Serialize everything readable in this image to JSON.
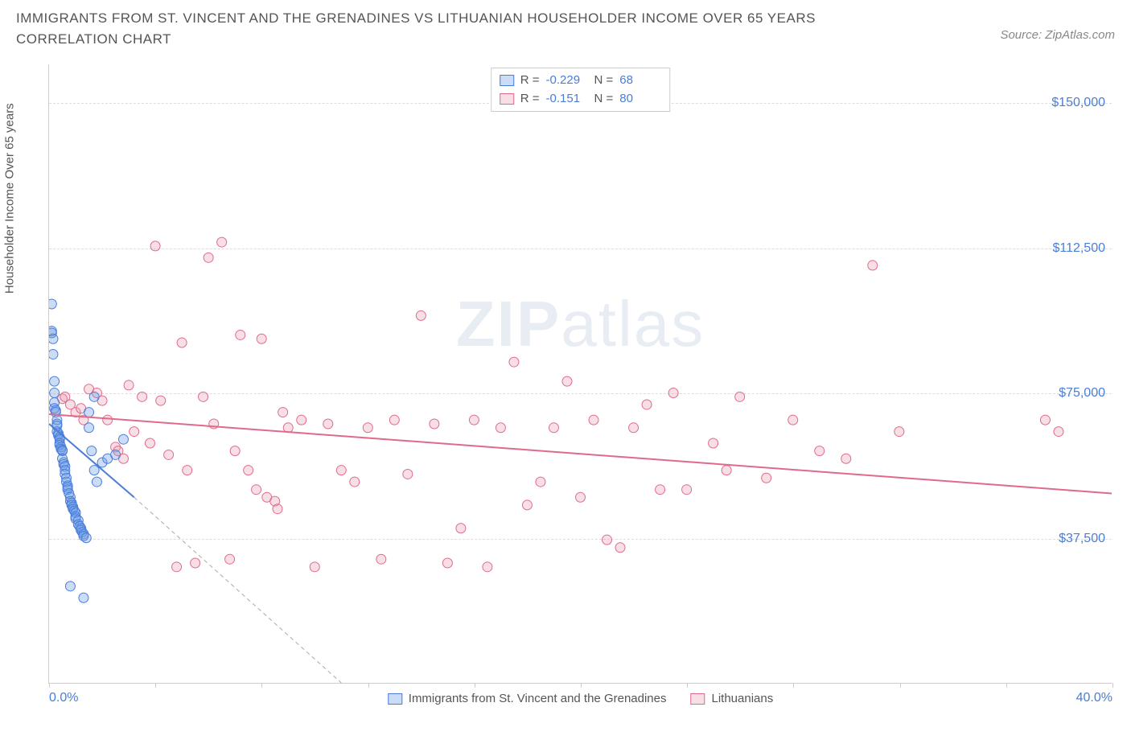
{
  "header": {
    "title": "IMMIGRANTS FROM ST. VINCENT AND THE GRENADINES VS LITHUANIAN HOUSEHOLDER INCOME OVER 65 YEARS CORRELATION CHART",
    "source": "Source: ZipAtlas.com"
  },
  "watermark": {
    "zip": "ZIP",
    "atlas": "atlas"
  },
  "chart": {
    "type": "scatter",
    "background_color": "#ffffff",
    "grid_color": "#dddddd",
    "axis_color": "#cccccc",
    "y_label": "Householder Income Over 65 years",
    "label_fontsize": 15,
    "tick_fontsize": 16,
    "tick_color": "#4a7dd8",
    "xlim": [
      0,
      40
    ],
    "ylim": [
      0,
      160000
    ],
    "x_ticks": [
      0,
      40
    ],
    "x_tick_labels": [
      "0.0%",
      "40.0%"
    ],
    "x_minor_ticks": [
      0,
      4,
      8,
      12,
      16,
      20,
      24,
      28,
      32,
      36,
      40
    ],
    "y_ticks": [
      37500,
      75000,
      112500,
      150000
    ],
    "y_tick_labels": [
      "$37,500",
      "$75,000",
      "$112,500",
      "$150,000"
    ],
    "marker_radius": 6,
    "marker_opacity": 0.55,
    "line_width": 2,
    "series": {
      "a": {
        "name": "Immigrants from St. Vincent and the Grenadines",
        "color": "#6b9be8",
        "fill": "rgba(107,155,232,0.35)",
        "border": "#4a7dd8",
        "R": "-0.229",
        "N": "68",
        "regression": {
          "x1": 0,
          "y1": 67000,
          "x2": 3.2,
          "y2": 48000
        },
        "extrapolation": {
          "x1": 3.2,
          "y1": 48000,
          "x2": 11,
          "y2": 0
        },
        "points": [
          [
            0.1,
            98000
          ],
          [
            0.1,
            91000
          ],
          [
            0.1,
            90500
          ],
          [
            0.15,
            85000
          ],
          [
            0.15,
            89000
          ],
          [
            0.2,
            78000
          ],
          [
            0.2,
            75000
          ],
          [
            0.2,
            72500
          ],
          [
            0.2,
            71000
          ],
          [
            0.25,
            70500
          ],
          [
            0.25,
            70000
          ],
          [
            0.3,
            68000
          ],
          [
            0.3,
            67000
          ],
          [
            0.3,
            66500
          ],
          [
            0.3,
            65000
          ],
          [
            0.35,
            64500
          ],
          [
            0.35,
            64000
          ],
          [
            0.4,
            63500
          ],
          [
            0.4,
            63000
          ],
          [
            0.4,
            62000
          ],
          [
            0.4,
            61500
          ],
          [
            0.45,
            61000
          ],
          [
            0.45,
            60500
          ],
          [
            0.5,
            60200
          ],
          [
            0.5,
            60000
          ],
          [
            0.5,
            58000
          ],
          [
            0.55,
            57000
          ],
          [
            0.55,
            56500
          ],
          [
            0.6,
            56000
          ],
          [
            0.6,
            55000
          ],
          [
            0.6,
            54000
          ],
          [
            0.65,
            53000
          ],
          [
            0.65,
            52000
          ],
          [
            0.7,
            51000
          ],
          [
            0.7,
            50500
          ],
          [
            0.7,
            50000
          ],
          [
            0.75,
            49000
          ],
          [
            0.8,
            48000
          ],
          [
            0.8,
            47000
          ],
          [
            0.85,
            46500
          ],
          [
            0.85,
            46000
          ],
          [
            0.9,
            45500
          ],
          [
            0.9,
            45000
          ],
          [
            0.95,
            44500
          ],
          [
            1.0,
            44000
          ],
          [
            1.0,
            43000
          ],
          [
            1.0,
            42500
          ],
          [
            1.1,
            42000
          ],
          [
            1.1,
            41000
          ],
          [
            1.15,
            40500
          ],
          [
            1.2,
            40000
          ],
          [
            1.2,
            39500
          ],
          [
            1.25,
            39000
          ],
          [
            1.3,
            38500
          ],
          [
            1.3,
            38000
          ],
          [
            1.4,
            37500
          ],
          [
            1.5,
            70000
          ],
          [
            1.5,
            66000
          ],
          [
            1.6,
            60000
          ],
          [
            1.7,
            55000
          ],
          [
            1.8,
            52000
          ],
          [
            2.0,
            57000
          ],
          [
            2.2,
            58000
          ],
          [
            2.5,
            59000
          ],
          [
            0.8,
            25000
          ],
          [
            1.3,
            22000
          ],
          [
            1.7,
            74000
          ],
          [
            2.8,
            63000
          ]
        ]
      },
      "b": {
        "name": "Lithuanians",
        "color": "#e89aae",
        "fill": "rgba(232,154,174,0.32)",
        "border": "#e06a8a",
        "R": "-0.151",
        "N": "80",
        "regression": {
          "x1": 0,
          "y1": 69500,
          "x2": 40,
          "y2": 49000
        },
        "points": [
          [
            0.5,
            73500
          ],
          [
            0.6,
            74000
          ],
          [
            0.8,
            72000
          ],
          [
            1.0,
            70000
          ],
          [
            1.2,
            71000
          ],
          [
            1.3,
            68000
          ],
          [
            1.5,
            76000
          ],
          [
            1.8,
            75000
          ],
          [
            2.0,
            73000
          ],
          [
            2.2,
            68000
          ],
          [
            2.5,
            61000
          ],
          [
            2.6,
            60000
          ],
          [
            2.8,
            58000
          ],
          [
            3.0,
            77000
          ],
          [
            3.2,
            65000
          ],
          [
            3.5,
            74000
          ],
          [
            3.8,
            62000
          ],
          [
            4.0,
            113000
          ],
          [
            4.2,
            73000
          ],
          [
            4.5,
            59000
          ],
          [
            4.8,
            30000
          ],
          [
            5.0,
            88000
          ],
          [
            5.2,
            55000
          ],
          [
            5.5,
            31000
          ],
          [
            5.8,
            74000
          ],
          [
            6.0,
            110000
          ],
          [
            6.2,
            67000
          ],
          [
            6.5,
            114000
          ],
          [
            6.8,
            32000
          ],
          [
            7.0,
            60000
          ],
          [
            7.2,
            90000
          ],
          [
            7.5,
            55000
          ],
          [
            7.8,
            50000
          ],
          [
            8.0,
            89000
          ],
          [
            8.2,
            48000
          ],
          [
            8.5,
            47000
          ],
          [
            8.6,
            45000
          ],
          [
            8.8,
            70000
          ],
          [
            9.0,
            66000
          ],
          [
            9.5,
            68000
          ],
          [
            10.0,
            30000
          ],
          [
            10.5,
            67000
          ],
          [
            11.0,
            55000
          ],
          [
            11.5,
            52000
          ],
          [
            12.0,
            66000
          ],
          [
            12.5,
            32000
          ],
          [
            13.0,
            68000
          ],
          [
            13.5,
            54000
          ],
          [
            14.0,
            95000
          ],
          [
            14.5,
            67000
          ],
          [
            15.0,
            31000
          ],
          [
            15.5,
            40000
          ],
          [
            16.0,
            68000
          ],
          [
            16.5,
            30000
          ],
          [
            17.0,
            66000
          ],
          [
            17.5,
            83000
          ],
          [
            18.0,
            46000
          ],
          [
            18.5,
            52000
          ],
          [
            19.0,
            66000
          ],
          [
            19.5,
            78000
          ],
          [
            20.0,
            48000
          ],
          [
            20.5,
            68000
          ],
          [
            21.0,
            37000
          ],
          [
            21.5,
            35000
          ],
          [
            22.0,
            66000
          ],
          [
            22.5,
            72000
          ],
          [
            23.0,
            50000
          ],
          [
            23.5,
            75000
          ],
          [
            24.0,
            50000
          ],
          [
            25.0,
            62000
          ],
          [
            25.5,
            55000
          ],
          [
            26.0,
            74000
          ],
          [
            27.0,
            53000
          ],
          [
            28.0,
            68000
          ],
          [
            29.0,
            60000
          ],
          [
            30.0,
            58000
          ],
          [
            31.0,
            108000
          ],
          [
            32.0,
            65000
          ],
          [
            37.5,
            68000
          ],
          [
            38.0,
            65000
          ]
        ]
      }
    },
    "legend_labels": {
      "R": "R =",
      "N": "N ="
    }
  }
}
